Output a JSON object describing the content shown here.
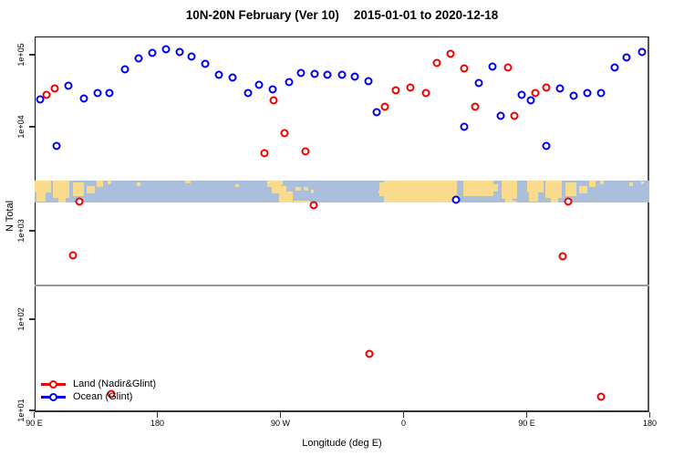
{
  "title": {
    "left": "10N-20N February (Ver 10)",
    "right": "2015-01-01 to 2020-12-18"
  },
  "axes": {
    "x": {
      "label": "Longitude (deg E)",
      "range_deg": [
        90,
        540
      ],
      "ticks": [
        {
          "deg": 90,
          "label": "90 E"
        },
        {
          "deg": 180,
          "label": "180"
        },
        {
          "deg": 270,
          "label": "90 W"
        },
        {
          "deg": 360,
          "label": "0"
        },
        {
          "deg": 450,
          "label": "90 E"
        },
        {
          "deg": 540,
          "label": "180"
        }
      ]
    },
    "y": {
      "label": "N Total",
      "scale": "log",
      "ticks": [
        {
          "value": 10,
          "label": "1e+01"
        },
        {
          "value": 100,
          "label": "1e+02"
        },
        {
          "value": 1000,
          "label": "1e+03"
        },
        {
          "value": 10000,
          "label": "1e+04"
        },
        {
          "value": 100000,
          "label": "1e+05"
        }
      ]
    }
  },
  "legend": {
    "items": [
      {
        "label": "Land (Nadir&Glint)",
        "color": "#EE0000"
      },
      {
        "label": "Ocean (Glint)",
        "color": "#0000EE"
      }
    ]
  },
  "colors": {
    "land_series": "#EE0000",
    "ocean_series": "#0000EE",
    "divider_line": "#999999",
    "map_ocean": "#A9BFDC",
    "map_land": "#F8DB8D"
  },
  "chart_data": {
    "type": "scatter",
    "title": "10N-20N February (Ver 10)  2015-01-01 to 2020-12-18",
    "xlabel": "Longitude (deg E)",
    "ylabel": "N Total",
    "x_range_deg": [
      90,
      540
    ],
    "y_scale": "log",
    "ylim": [
      10,
      200000
    ],
    "marker": "open-circle",
    "grid": false,
    "legend_position": "bottom-left-inside",
    "series": [
      {
        "id": "land",
        "name": "Land (Nadir&Glint)",
        "color": "#EE0000",
        "points": [
          {
            "lon": 99,
            "n": 28000
          },
          {
            "lon": 105,
            "n": 34000
          },
          {
            "lon": 265,
            "n": 23000
          },
          {
            "lon": 273,
            "n": 8700
          },
          {
            "lon": 258,
            "n": 5600
          },
          {
            "lon": 288,
            "n": 5800
          },
          {
            "lon": 346,
            "n": 19000
          },
          {
            "lon": 354,
            "n": 32000
          },
          {
            "lon": 365,
            "n": 35000
          },
          {
            "lon": 376,
            "n": 29000
          },
          {
            "lon": 384,
            "n": 77000
          },
          {
            "lon": 394,
            "n": 103000
          },
          {
            "lon": 404,
            "n": 65000
          },
          {
            "lon": 412,
            "n": 19000
          },
          {
            "lon": 436,
            "n": 66000
          },
          {
            "lon": 441,
            "n": 14000
          },
          {
            "lon": 456,
            "n": 29000
          },
          {
            "lon": 464,
            "n": 35000
          },
          {
            "lon": 123,
            "n": 1900
          },
          {
            "lon": 294,
            "n": 1750
          },
          {
            "lon": 480,
            "n": 1900
          },
          {
            "lon": 118,
            "n": 530
          },
          {
            "lon": 476,
            "n": 510
          },
          {
            "lon": 335,
            "n": 42
          },
          {
            "lon": 146,
            "n": 15
          },
          {
            "lon": 504,
            "n": 14
          }
        ]
      },
      {
        "id": "ocean",
        "name": "Ocean (Glint)",
        "color": "#0000EE",
        "points": [
          {
            "lon": 94,
            "n": 24000
          },
          {
            "lon": 115,
            "n": 37000
          },
          {
            "lon": 126,
            "n": 25000
          },
          {
            "lon": 136,
            "n": 29000
          },
          {
            "lon": 145,
            "n": 29000
          },
          {
            "lon": 156,
            "n": 63000
          },
          {
            "lon": 166,
            "n": 89000
          },
          {
            "lon": 176,
            "n": 106000
          },
          {
            "lon": 186,
            "n": 119000
          },
          {
            "lon": 196,
            "n": 109000
          },
          {
            "lon": 205,
            "n": 94000
          },
          {
            "lon": 215,
            "n": 75000
          },
          {
            "lon": 225,
            "n": 53000
          },
          {
            "lon": 235,
            "n": 48000
          },
          {
            "lon": 246,
            "n": 29000
          },
          {
            "lon": 254,
            "n": 38000
          },
          {
            "lon": 264,
            "n": 33000
          },
          {
            "lon": 276,
            "n": 42000
          },
          {
            "lon": 285,
            "n": 56000
          },
          {
            "lon": 295,
            "n": 54000
          },
          {
            "lon": 304,
            "n": 53000
          },
          {
            "lon": 315,
            "n": 53000
          },
          {
            "lon": 324,
            "n": 50000
          },
          {
            "lon": 334,
            "n": 43000
          },
          {
            "lon": 340,
            "n": 16000
          },
          {
            "lon": 106,
            "n": 6500
          },
          {
            "lon": 398,
            "n": 2000
          },
          {
            "lon": 404,
            "n": 10000
          },
          {
            "lon": 415,
            "n": 41000
          },
          {
            "lon": 425,
            "n": 68000
          },
          {
            "lon": 431,
            "n": 14000
          },
          {
            "lon": 446,
            "n": 28000
          },
          {
            "lon": 453,
            "n": 23000
          },
          {
            "lon": 464,
            "n": 6500
          },
          {
            "lon": 474,
            "n": 34000
          },
          {
            "lon": 484,
            "n": 27000
          },
          {
            "lon": 494,
            "n": 29000
          },
          {
            "lon": 504,
            "n": 29000
          },
          {
            "lon": 514,
            "n": 66000
          },
          {
            "lon": 523,
            "n": 92000
          },
          {
            "lon": 534,
            "n": 109000
          }
        ]
      }
    ]
  },
  "map_band": {
    "description": "World coastline strip for the 10N-20N latitude band",
    "ocean_color": "#A9BFDC",
    "land_color": "#F8DB8D",
    "land_patches": [
      [
        0,
        18,
        0,
        0.55
      ],
      [
        2,
        12,
        0.45,
        0.95
      ],
      [
        20,
        38,
        0,
        0.8
      ],
      [
        26,
        34,
        0.7,
        1.0
      ],
      [
        42,
        54,
        0.08,
        0.7
      ],
      [
        57,
        66,
        0.25,
        0.6
      ],
      [
        68,
        75,
        0,
        0.3
      ],
      [
        80,
        84,
        0,
        0.15
      ],
      [
        112,
        116,
        0.1,
        0.25
      ],
      [
        165,
        171,
        0,
        0.12
      ],
      [
        220,
        224,
        0.15,
        0.3
      ],
      [
        255,
        270,
        0,
        0.3
      ],
      [
        260,
        276,
        0.25,
        0.6
      ],
      [
        268,
        283,
        0.5,
        1.0
      ],
      [
        262,
        272,
        0,
        0.2
      ],
      [
        286,
        292,
        0.3,
        0.45
      ],
      [
        295,
        300,
        0.3,
        0.45
      ],
      [
        303,
        306,
        0.4,
        0.6
      ],
      [
        284,
        302,
        0.9,
        1.0
      ],
      [
        377,
        381,
        0.45,
        0.6
      ],
      [
        378,
        383,
        0.1,
        0.7
      ],
      [
        383,
        463,
        0,
        1.0
      ],
      [
        470,
        503,
        0,
        0.72
      ],
      [
        497,
        508,
        0.15,
        0.5
      ],
      [
        512,
        529,
        0,
        0.85
      ],
      [
        516,
        524,
        0.8,
        1.0
      ],
      [
        524,
        528,
        0.92,
        1.0
      ],
      [
        540,
        558,
        0,
        0.55
      ],
      [
        542,
        552,
        0.45,
        0.95
      ],
      [
        560,
        578,
        0,
        0.8
      ],
      [
        566,
        574,
        0.7,
        1.0
      ],
      [
        582,
        594,
        0.08,
        0.7
      ],
      [
        597,
        606,
        0.25,
        0.6
      ],
      [
        608,
        615,
        0,
        0.3
      ],
      [
        620,
        624,
        0,
        0.15
      ],
      [
        652,
        656,
        0.1,
        0.25
      ],
      [
        665,
        668,
        0.05,
        0.15
      ]
    ]
  }
}
